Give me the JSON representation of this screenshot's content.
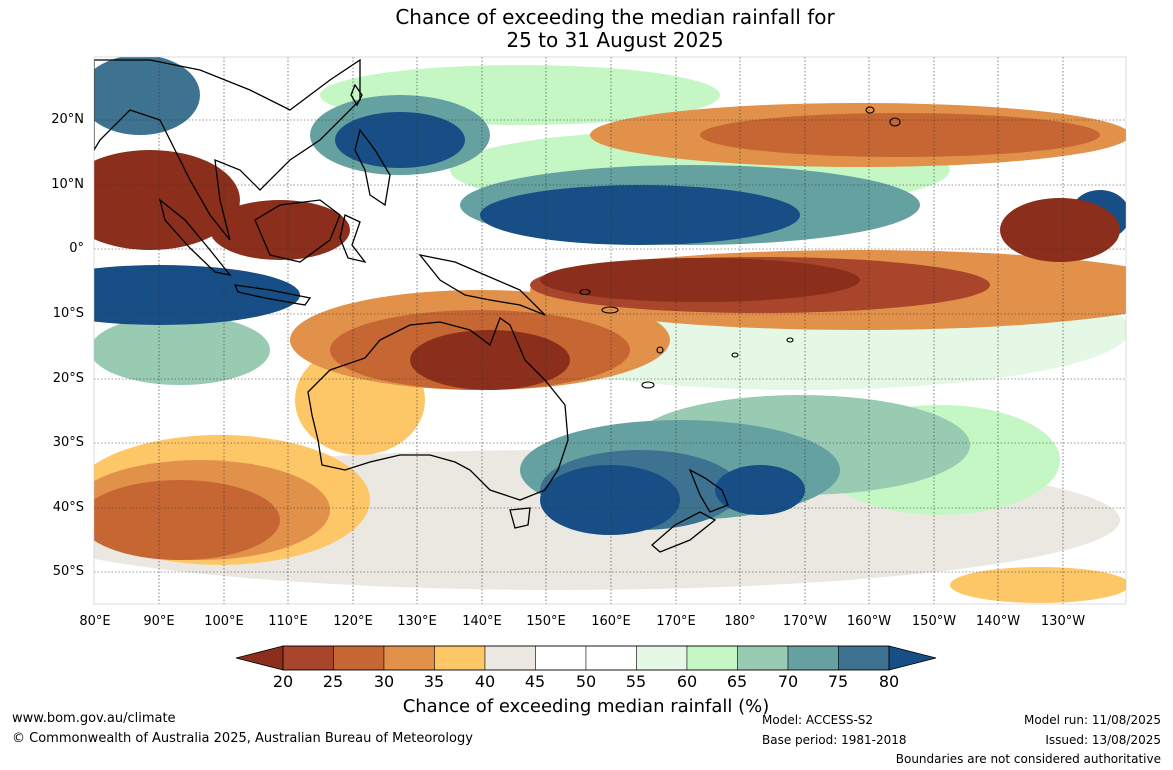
{
  "title": {
    "line1": "Chance of exceeding the median rainfall for",
    "line2": "25 to 31 August 2025"
  },
  "map": {
    "lat_labels": [
      "20°N",
      "10°N",
      "0°",
      "10°S",
      "20°S",
      "30°S",
      "40°S",
      "50°S"
    ],
    "lon_labels": [
      "80°E",
      "90°E",
      "100°E",
      "110°E",
      "120°E",
      "130°E",
      "140°E",
      "150°E",
      "160°E",
      "170°E",
      "180°",
      "170°W",
      "160°W",
      "150°W",
      "140°W",
      "130°W"
    ]
  },
  "colorbar": {
    "ticks": [
      "20",
      "25",
      "30",
      "35",
      "40",
      "45",
      "50",
      "55",
      "60",
      "65",
      "70",
      "75",
      "80"
    ],
    "colors": {
      "below_20": "#8b2e1c",
      "20_25": "#a8452a",
      "25_30": "#c66633",
      "30_35": "#e2914a",
      "35_40": "#fdc767",
      "40_45": "#ebe8e2",
      "45_50": "#ffffff",
      "50_55": "#ffffff",
      "55_60": "#e5f7e5",
      "60_65": "#c4f7c4",
      "65_70": "#98cbb2",
      "70_75": "#65a1a1",
      "75_80": "#3d7391",
      "above_80": "#174e86"
    },
    "label": "Chance of exceeding median rainfall (%)"
  },
  "footer": {
    "website": "www.bom.gov.au/climate",
    "copyright": "© Commonwealth of Australia 2025, Australian Bureau of Meteorology",
    "model": "Model: ACCESS-S2",
    "base_period": "Base period: 1981-2018",
    "model_run": "Model run: 11/08/2025",
    "issued": "Issued: 13/08/2025",
    "disclaimer": "Boundaries are not considered authoritative"
  }
}
